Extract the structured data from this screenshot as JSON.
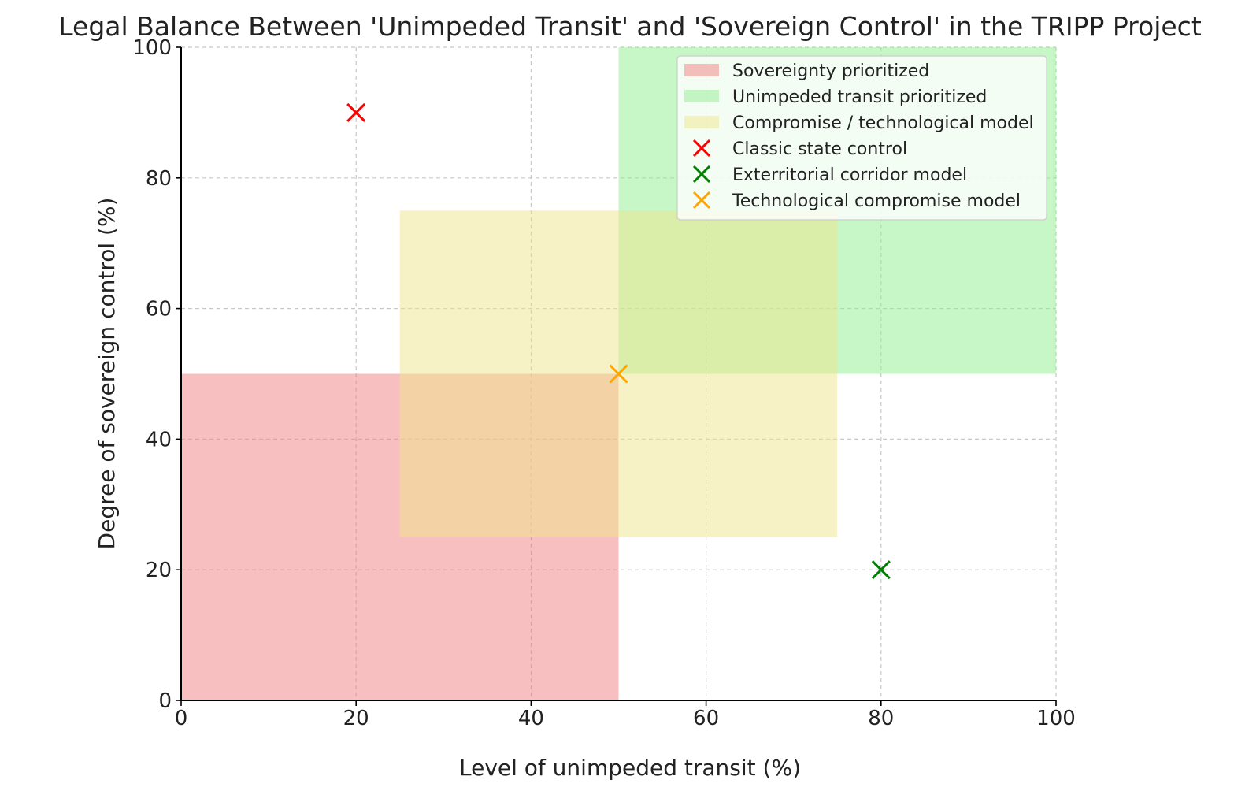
{
  "chart_data": {
    "type": "scatter",
    "title": "Legal Balance Between 'Unimpeded Transit' and 'Sovereign Control' in the TRIPP Project",
    "xlabel": "Level of unimpeded transit (%)",
    "ylabel": "Degree of sovereign control (%)",
    "xlim": [
      0,
      100
    ],
    "ylim": [
      0,
      100
    ],
    "xticks": [
      0,
      20,
      40,
      60,
      80,
      100
    ],
    "yticks": [
      0,
      20,
      40,
      60,
      80,
      100
    ],
    "grid": true,
    "legend_position": "top-right",
    "regions": [
      {
        "name": "Sovereignty prioritized",
        "x": [
          0,
          50
        ],
        "y": [
          0,
          50
        ],
        "color": "#f08080",
        "opacity": 0.5
      },
      {
        "name": "Unimpeded transit prioritized",
        "x": [
          50,
          100
        ],
        "y": [
          50,
          100
        ],
        "color": "#90ee90",
        "opacity": 0.5
      },
      {
        "name": "Compromise / technological model",
        "x": [
          25,
          75
        ],
        "y": [
          25,
          75
        ],
        "color": "#f0e68c",
        "opacity": 0.5
      }
    ],
    "series": [
      {
        "name": "Classic state control",
        "marker": "x",
        "color": "#ff0000",
        "points": [
          [
            20,
            90
          ]
        ]
      },
      {
        "name": "Exterritorial corridor model",
        "marker": "x",
        "color": "#008000",
        "points": [
          [
            80,
            20
          ]
        ]
      },
      {
        "name": "Technological compromise model",
        "marker": "x",
        "color": "#ffa500",
        "points": [
          [
            50,
            50
          ]
        ]
      }
    ]
  }
}
